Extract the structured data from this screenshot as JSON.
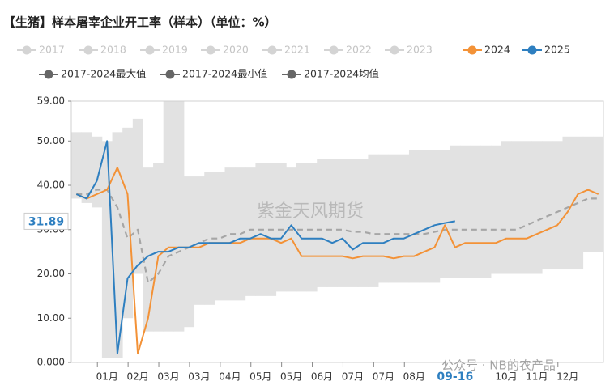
{
  "chart_data": {
    "type": "line",
    "title": "【生猪】样本屠宰企业开工率（样本）（单位：%）",
    "inactive_legend": [
      {
        "name": "2017",
        "color": "#d4d4d4"
      },
      {
        "name": "2018",
        "color": "#d4d4d4"
      },
      {
        "name": "2019",
        "color": "#d4d4d4"
      },
      {
        "name": "2020",
        "color": "#d4d4d4"
      },
      {
        "name": "2021",
        "color": "#d4d4d4"
      },
      {
        "name": "2022",
        "color": "#d4d4d4"
      },
      {
        "name": "2023",
        "color": "#d4d4d4"
      }
    ],
    "categories": [
      null,
      null,
      null,
      "01月",
      null,
      null,
      "02月",
      null,
      null,
      "03月",
      null,
      null,
      "03月",
      null,
      null,
      "04月",
      null,
      null,
      "05月",
      null,
      null,
      "05月",
      null,
      null,
      "06月",
      null,
      null,
      "07月",
      null,
      null,
      "07月",
      null,
      null,
      "08月",
      null,
      null,
      null,
      "09-16",
      null,
      null,
      null,
      null,
      "10月",
      null,
      null,
      "11月",
      null,
      null,
      "12月",
      null,
      null,
      null
    ],
    "series": [
      {
        "name": "2017-2024最大值",
        "color": "#666666",
        "style": "band-top",
        "values": [
          52,
          52,
          51,
          50,
          52,
          53,
          55,
          44,
          45,
          59,
          59,
          42,
          42,
          43,
          43,
          44,
          44,
          44,
          45,
          45,
          45,
          44,
          45,
          45,
          46,
          46,
          46,
          46,
          46,
          47,
          47,
          47,
          47,
          48,
          48,
          48,
          48,
          49,
          49,
          49,
          49,
          49,
          50,
          50,
          50,
          50,
          50,
          50,
          51,
          51,
          51,
          51
        ]
      },
      {
        "name": "2017-2024最小值",
        "color": "#666666",
        "style": "band-bottom",
        "values": [
          37,
          36,
          35,
          1,
          1,
          10,
          20,
          7,
          7,
          7,
          7,
          8,
          13,
          13,
          14,
          14,
          14,
          15,
          15,
          15,
          16,
          16,
          16,
          16,
          17,
          17,
          17,
          17,
          17,
          17,
          18,
          18,
          18,
          18,
          18,
          18,
          19,
          19,
          19,
          19,
          19,
          20,
          20,
          20,
          20,
          20,
          21,
          21,
          21,
          21,
          25,
          25
        ]
      },
      {
        "name": "2017-2024均值",
        "color": "#666666",
        "line_color": "#a6a6a6",
        "style": "dashed",
        "values": [
          38,
          38,
          39,
          39,
          35,
          28,
          30,
          18,
          20,
          24,
          25,
          26,
          27,
          28,
          28,
          29,
          29,
          30,
          30,
          30,
          30,
          30,
          30,
          30,
          30,
          30,
          30,
          29.5,
          29.5,
          29,
          29,
          29,
          29,
          29,
          29,
          29.5,
          30,
          30,
          30,
          30,
          30,
          30,
          30,
          30,
          31,
          32,
          33,
          34,
          35,
          36,
          37,
          37
        ]
      },
      {
        "name": "2024",
        "color": "#f39237",
        "style": "solid",
        "values": [
          38,
          37,
          38,
          39,
          44,
          38,
          2,
          10,
          24,
          26,
          26,
          26,
          26,
          27,
          27,
          27,
          27,
          28,
          28,
          28,
          27,
          28,
          24,
          24,
          24,
          24,
          24,
          23.5,
          24,
          24,
          24,
          23.5,
          24,
          24,
          25,
          26,
          31,
          26,
          27,
          27,
          27,
          27,
          28,
          28,
          28,
          29,
          30,
          31,
          34,
          38,
          39,
          38
        ]
      },
      {
        "name": "2025",
        "color": "#2e7fc0",
        "style": "solid",
        "values": [
          38,
          37,
          41,
          50,
          2,
          19,
          22,
          24,
          25,
          25,
          26,
          26,
          27,
          27,
          27,
          27,
          28,
          28,
          29,
          28,
          28,
          31,
          28,
          28,
          28,
          27,
          28,
          25.5,
          27,
          27,
          27,
          28,
          28,
          29,
          30,
          31,
          31.5,
          31.89,
          null,
          null,
          null,
          null,
          null,
          null,
          null,
          null,
          null,
          null,
          null,
          null,
          null,
          null
        ]
      }
    ],
    "legend_order": [
      3,
      4,
      0,
      1,
      2
    ],
    "highlight": {
      "value": 31.89,
      "label": "31.89"
    },
    "ylim": [
      0,
      59
    ],
    "yticks": [
      {
        "value": 0,
        "label": "0.000"
      },
      {
        "value": 10,
        "label": "10.00"
      },
      {
        "value": 20,
        "label": "20.00"
      },
      {
        "value": 30,
        "label": "30.00"
      },
      {
        "value": 40,
        "label": "40.00"
      },
      {
        "value": 50,
        "label": "50.00"
      },
      {
        "value": 59,
        "label": "59.00"
      }
    ],
    "grid": false,
    "band_color": "#e2e2e2",
    "watermarks": [
      "紫金天风期货",
      "公众号 · NB的农产品"
    ]
  }
}
